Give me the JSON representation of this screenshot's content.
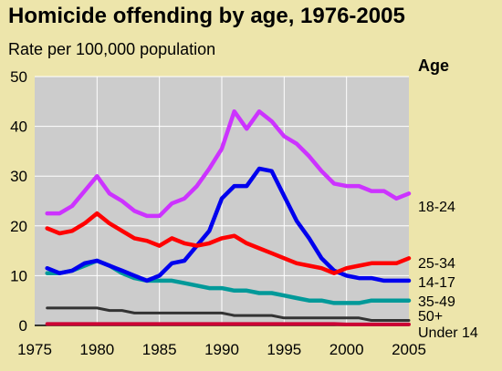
{
  "chart_data": {
    "type": "line",
    "title": "Homicide offending by age, 1976-2005",
    "subtitle": "Rate per 100,000 population",
    "legend_title": "Age",
    "legend_placement": "right",
    "grid": true,
    "xlim": [
      1975,
      2005
    ],
    "ylim": [
      0,
      50
    ],
    "x_ticks": [
      1975,
      1980,
      1985,
      1990,
      1995,
      2000,
      2005
    ],
    "y_ticks": [
      0,
      10,
      20,
      30,
      40,
      50
    ],
    "x": [
      1976,
      1977,
      1978,
      1979,
      1980,
      1981,
      1982,
      1983,
      1984,
      1985,
      1986,
      1987,
      1988,
      1989,
      1990,
      1991,
      1992,
      1993,
      1994,
      1995,
      1996,
      1997,
      1998,
      1999,
      2000,
      2001,
      2002,
      2003,
      2004,
      2005
    ],
    "series": [
      {
        "name": "18-24",
        "color": "#cc33ff",
        "values": [
          22.5,
          22.5,
          24,
          27,
          30,
          26.5,
          25,
          23,
          22,
          22,
          24.5,
          25.5,
          28,
          31.5,
          35.5,
          43,
          39.5,
          43,
          41,
          38,
          36.5,
          34,
          31,
          28.5,
          28,
          28,
          27,
          27,
          25.5,
          26.5
        ]
      },
      {
        "name": "25-34",
        "color": "#ff0000",
        "values": [
          19.5,
          18.5,
          19,
          20.5,
          22.5,
          20.5,
          19,
          17.5,
          17,
          16,
          17.5,
          16.5,
          16,
          16.5,
          17.5,
          18,
          16.5,
          15.5,
          14.5,
          13.5,
          12.5,
          12,
          11.5,
          10.5,
          11.5,
          12,
          12.5,
          12.5,
          12.5,
          13.5
        ]
      },
      {
        "name": "14-17",
        "color": "#0000ee",
        "values": [
          11.5,
          10.5,
          11,
          12.5,
          13,
          12,
          11,
          10,
          9,
          10,
          12.5,
          13,
          16,
          19,
          25.5,
          28,
          28,
          31.5,
          31,
          26,
          21,
          17.5,
          13.5,
          11,
          10,
          9.5,
          9.5,
          9,
          9,
          9
        ]
      },
      {
        "name": "35-49",
        "color": "#009999",
        "values": [
          10.5,
          10.5,
          11,
          12,
          13,
          12,
          10.5,
          9.5,
          9,
          9,
          9,
          8.5,
          8,
          7.5,
          7.5,
          7,
          7,
          6.5,
          6.5,
          6,
          5.5,
          5,
          5,
          4.5,
          4.5,
          4.5,
          5,
          5,
          5,
          5
        ]
      },
      {
        "name": "50+",
        "color": "#333333",
        "values": [
          3.5,
          3.5,
          3.5,
          3.5,
          3.5,
          3,
          3,
          2.5,
          2.5,
          2.5,
          2.5,
          2.5,
          2.5,
          2.5,
          2.5,
          2,
          2,
          2,
          2,
          1.5,
          1.5,
          1.5,
          1.5,
          1.5,
          1.5,
          1.5,
          1,
          1,
          1,
          1
        ]
      },
      {
        "name": "Under 14",
        "color": "#cc0033",
        "values": [
          0.3,
          0.3,
          0.3,
          0.3,
          0.3,
          0.3,
          0.3,
          0.3,
          0.3,
          0.3,
          0.3,
          0.3,
          0.3,
          0.3,
          0.3,
          0.3,
          0.3,
          0.3,
          0.3,
          0.3,
          0.3,
          0.3,
          0.3,
          0.3,
          0.2,
          0.2,
          0.2,
          0.2,
          0.2,
          0.2
        ]
      }
    ]
  }
}
